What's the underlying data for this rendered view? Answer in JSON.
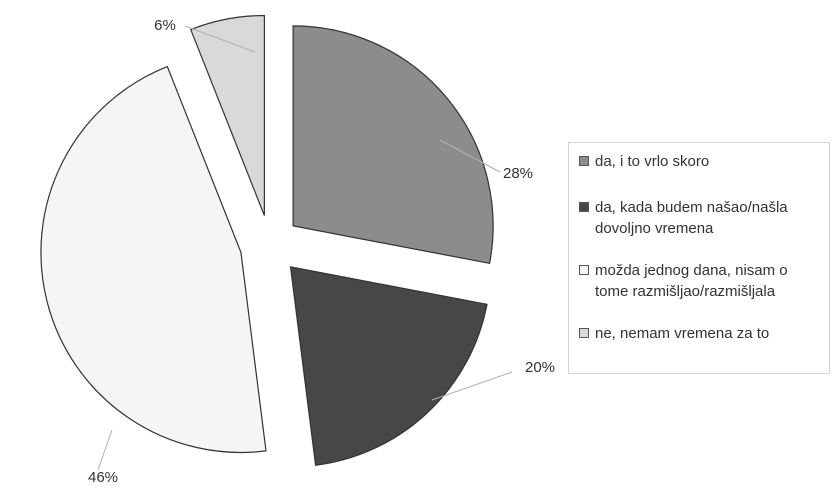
{
  "chart_data": {
    "type": "pie",
    "exploded": true,
    "start_angle_deg": 0,
    "direction": "clockwise",
    "categories": [
      "da, i to vrlo skoro",
      "da, kada budem našao/našla dovoljno vremena",
      "možda jednog dana, nisam o tome razmišljao/razmišljala",
      "ne, nemam vremena za to"
    ],
    "values": [
      28,
      20,
      46,
      6
    ],
    "labels": [
      "28%",
      "20%",
      "46%",
      "6%"
    ],
    "colors": [
      "#8c8c8c",
      "#474747",
      "#f5f5f5",
      "#d9d9d9"
    ],
    "legend_position": "right"
  }
}
